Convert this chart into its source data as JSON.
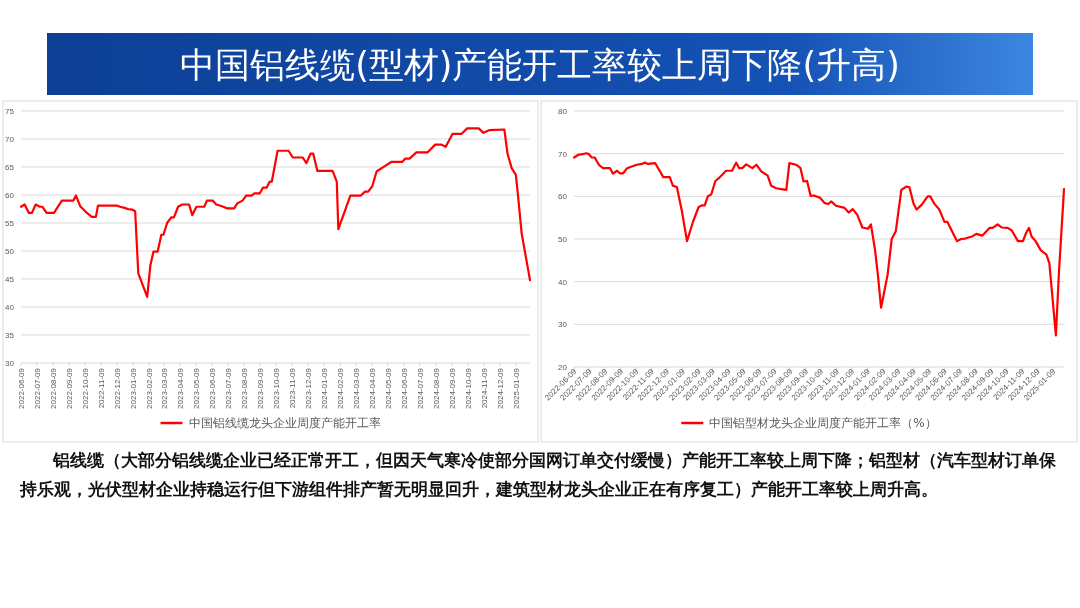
{
  "chart_data": [
    {
      "type": "other",
      "title": "中国铝线缆(型材)产能开工率较上周下降(升高)",
      "annotations": [
        "铝线缆（大部分铝线缆企业已经正常开工，但因天气寒冷使部分国网订单交付缓慢）产能开工率较上周下降；铝型材（汽车型材订单保持乐观，光伏型材企业持稳运行但下游组件排产暂无明显回升，建筑型材龙头企业正在有序复工）产能开工率较上周升高。"
      ]
    },
    {
      "type": "line",
      "legend": "bottom",
      "grid": "y",
      "ylim": [
        30,
        75
      ],
      "yticks": [
        30,
        35,
        40,
        45,
        50,
        55,
        60,
        65,
        70,
        75
      ],
      "xlim": [
        "2022-06-09",
        "2025-02-05"
      ],
      "xticks": [
        "2022-06-09",
        "2022-07-09",
        "2022-08-09",
        "2022-09-09",
        "2022-10-09",
        "2022-11-09",
        "2022-12-09",
        "2023-01-09",
        "2023-02-09",
        "2023-03-09",
        "2023-04-09",
        "2023-05-09",
        "2023-06-09",
        "2023-07-09",
        "2023-08-09",
        "2023-09-09",
        "2023-10-09",
        "2023-11-09",
        "2023-12-09",
        "2024-01-09",
        "2024-02-09",
        "2024-03-09",
        "2024-04-09",
        "2024-05-09",
        "2024-06-09",
        "2024-07-09",
        "2024-08-09",
        "2024-09-09",
        "2024-10-09",
        "2024-11-09",
        "2024-12-09",
        "2025-01-09"
      ],
      "series": [
        {
          "name": "中国铝线缆龙头企业周度产能开工率",
          "color": "#ff0000",
          "x": [
            "2022-06-09",
            "2022-06-16",
            "2022-06-24",
            "2022-06-30",
            "2022-07-07",
            "2022-07-15",
            "2022-07-20",
            "2022-07-28",
            "2022-08-11",
            "2022-08-26",
            "2022-09-17",
            "2022-09-22",
            "2022-09-30",
            "2022-10-13",
            "2022-10-22",
            "2022-10-30",
            "2022-11-03",
            "2022-12-09",
            "2022-12-15",
            "2022-12-24",
            "2022-12-30",
            "2023-01-07",
            "2023-01-13",
            "2023-01-19",
            "2023-02-05",
            "2023-02-11",
            "2023-02-17",
            "2023-02-25",
            "2023-03-04",
            "2023-03-08",
            "2023-03-15",
            "2023-03-23",
            "2023-03-28",
            "2023-04-05",
            "2023-04-13",
            "2023-04-26",
            "2023-05-02",
            "2023-05-10",
            "2023-05-25",
            "2023-05-30",
            "2023-06-10",
            "2023-06-17",
            "2023-06-28",
            "2023-07-08",
            "2023-07-21",
            "2023-07-27",
            "2023-08-06",
            "2023-08-13",
            "2023-08-23",
            "2023-08-29",
            "2023-09-08",
            "2023-09-14",
            "2023-09-21",
            "2023-09-27",
            "2023-10-01",
            "2023-10-12",
            "2023-11-02",
            "2023-11-10",
            "2023-11-29",
            "2023-12-06",
            "2023-12-14",
            "2023-12-19",
            "2023-12-27",
            "2024-01-25",
            "2024-02-02",
            "2024-02-05",
            "2024-02-28",
            "2024-03-19",
            "2024-03-27",
            "2024-04-02",
            "2024-04-10",
            "2024-04-18",
            "2024-05-03",
            "2024-05-16",
            "2024-06-06",
            "2024-06-12",
            "2024-06-20",
            "2024-07-03",
            "2024-07-24",
            "2024-08-08",
            "2024-08-20",
            "2024-08-28",
            "2024-09-10",
            "2024-09-27",
            "2024-10-08",
            "2024-10-30",
            "2024-11-08",
            "2024-11-20",
            "2024-12-18",
            "2024-12-24",
            "2025-01-01",
            "2025-01-09",
            "2025-01-13",
            "2025-01-20",
            "2025-02-05"
          ],
          "values": [
            57.9,
            58.3,
            56.8,
            56.8,
            58.3,
            57.9,
            57.9,
            56.8,
            56.8,
            59.0,
            59.0,
            59.9,
            58.0,
            56.8,
            56.1,
            56.1,
            58.1,
            58.1,
            57.9,
            57.7,
            57.5,
            57.4,
            57.1,
            46.0,
            41.8,
            47.4,
            49.9,
            49.9,
            52.9,
            52.9,
            55.0,
            56.0,
            56.0,
            57.9,
            58.3,
            58.3,
            56.4,
            57.9,
            57.9,
            59.0,
            59.0,
            58.3,
            58.0,
            57.6,
            57.6,
            58.5,
            59.0,
            59.9,
            59.9,
            60.3,
            60.3,
            61.3,
            61.3,
            62.4,
            62.4,
            67.9,
            67.9,
            66.7,
            66.7,
            65.7,
            67.4,
            67.4,
            64.3,
            64.3,
            62.4,
            53.9,
            59.9,
            59.9,
            60.6,
            60.6,
            61.6,
            64.2,
            65.1,
            65.9,
            65.9,
            66.5,
            66.5,
            67.6,
            67.6,
            69.0,
            69.0,
            68.6,
            70.9,
            70.9,
            71.9,
            71.9,
            71.1,
            71.6,
            71.7,
            67.4,
            64.8,
            63.6,
            60.0,
            53.2,
            44.8
          ]
        }
      ]
    },
    {
      "type": "line",
      "legend": "bottom",
      "grid": "y",
      "ylim": [
        20,
        80
      ],
      "yticks": [
        20,
        30,
        40,
        50,
        60,
        70,
        80
      ],
      "xlim": [
        "2022-06-09",
        "2025-01-31"
      ],
      "xticks": [
        "2022-06-09",
        "2022-07-09",
        "2022-08-09",
        "2022-09-09",
        "2022-10-09",
        "2022-11-09",
        "2022-12-09",
        "2023-01-09",
        "2023-02-09",
        "2023-03-09",
        "2023-04-09",
        "2023-05-09",
        "2023-06-09",
        "2023-07-09",
        "2023-08-09",
        "2023-09-09",
        "2023-10-09",
        "2023-11-09",
        "2023-12-09",
        "2024-01-09",
        "2024-02-09",
        "2024-03-09",
        "2024-04-09",
        "2024-05-09",
        "2024-06-09",
        "2024-07-09",
        "2024-08-09",
        "2024-09-09",
        "2024-10-09",
        "2024-11-09",
        "2024-12-09",
        "2025-01-09"
      ],
      "series": [
        {
          "name": "中国铝型材龙头企业周度产能开工率（%）",
          "color": "#ff0000",
          "x": [
            "2022-06-09",
            "2022-06-17",
            "2022-06-26",
            "2022-07-04",
            "2022-07-08",
            "2022-07-14",
            "2022-07-20",
            "2022-07-28",
            "2022-08-05",
            "2022-08-19",
            "2022-08-25",
            "2022-09-02",
            "2022-09-08",
            "2022-09-14",
            "2022-09-22",
            "2022-10-01",
            "2022-10-11",
            "2022-10-21",
            "2022-10-27",
            "2022-11-02",
            "2022-11-16",
            "2022-11-26",
            "2022-12-02",
            "2022-12-15",
            "2022-12-21",
            "2022-12-29",
            "2023-01-08",
            "2023-01-18",
            "2023-01-30",
            "2023-02-10",
            "2023-02-17",
            "2023-02-22",
            "2023-02-28",
            "2023-03-07",
            "2023-03-15",
            "2023-03-23",
            "2023-03-28",
            "2023-04-05",
            "2023-04-17",
            "2023-04-25",
            "2023-05-01",
            "2023-05-07",
            "2023-05-15",
            "2023-05-27",
            "2023-06-04",
            "2023-06-14",
            "2023-06-26",
            "2023-07-03",
            "2023-07-13",
            "2023-07-23",
            "2023-08-02",
            "2023-08-08",
            "2023-08-18",
            "2023-08-24",
            "2023-08-30",
            "2023-09-05",
            "2023-09-12",
            "2023-09-19",
            "2023-09-25",
            "2023-10-07",
            "2023-10-17",
            "2023-10-24",
            "2023-10-30",
            "2023-11-08",
            "2023-11-25",
            "2023-12-03",
            "2023-12-11",
            "2023-12-20",
            "2023-12-30",
            "2024-01-10",
            "2024-01-16",
            "2024-01-24",
            "2024-01-30",
            "2024-02-05",
            "2024-02-18",
            "2024-02-26",
            "2024-03-05",
            "2024-03-16",
            "2024-03-26",
            "2024-04-01",
            "2024-04-09",
            "2024-04-15",
            "2024-04-25",
            "2024-05-07",
            "2024-05-12",
            "2024-05-20",
            "2024-05-30",
            "2024-06-09",
            "2024-06-15",
            "2024-06-25",
            "2024-07-04",
            "2024-07-12",
            "2024-07-20",
            "2024-07-28",
            "2024-08-03",
            "2024-08-11",
            "2024-08-23",
            "2024-09-06",
            "2024-09-12",
            "2024-09-22",
            "2024-09-30",
            "2024-10-12",
            "2024-10-20",
            "2024-11-01",
            "2024-11-11",
            "2024-11-17",
            "2024-11-23",
            "2024-11-28",
            "2024-12-06",
            "2024-12-16",
            "2024-12-22",
            "2024-12-27",
            "2025-01-02",
            "2025-01-15",
            "2025-01-21",
            "2025-01-31"
          ],
          "values": [
            69.1,
            69.7,
            69.9,
            70.1,
            69.9,
            69.1,
            69.1,
            67.4,
            66.6,
            66.6,
            65.3,
            66.0,
            65.4,
            65.4,
            66.6,
            67.0,
            67.4,
            67.6,
            67.9,
            67.6,
            67.8,
            65.8,
            64.5,
            64.5,
            62.5,
            62.2,
            56.5,
            49.5,
            54.1,
            57.5,
            57.9,
            57.9,
            60.0,
            60.5,
            63.6,
            64.4,
            65.0,
            66.0,
            66.0,
            67.9,
            66.6,
            66.6,
            67.5,
            66.6,
            67.4,
            65.8,
            64.9,
            62.5,
            61.9,
            61.7,
            61.5,
            67.8,
            67.5,
            67.2,
            66.6,
            63.5,
            63.6,
            60.1,
            60.2,
            59.7,
            58.4,
            58.2,
            58.8,
            57.8,
            57.3,
            56.2,
            57.0,
            55.7,
            52.7,
            52.4,
            53.4,
            47.5,
            41.3,
            33.9,
            41.7,
            50.0,
            51.8,
            61.5,
            62.3,
            62.1,
            58.3,
            56.9,
            58.0,
            60.0,
            60.0,
            58.3,
            56.9,
            54.0,
            54.0,
            51.6,
            49.5,
            50.0,
            50.1,
            50.4,
            50.6,
            51.2,
            50.8,
            52.6,
            52.6,
            53.4,
            52.7,
            52.6,
            52.0,
            49.5,
            49.5,
            51.4,
            52.6,
            50.6,
            49.5,
            47.4,
            46.8,
            46.4,
            44.4,
            27.4,
            42.1,
            61.7
          ]
        }
      ]
    }
  ]
}
